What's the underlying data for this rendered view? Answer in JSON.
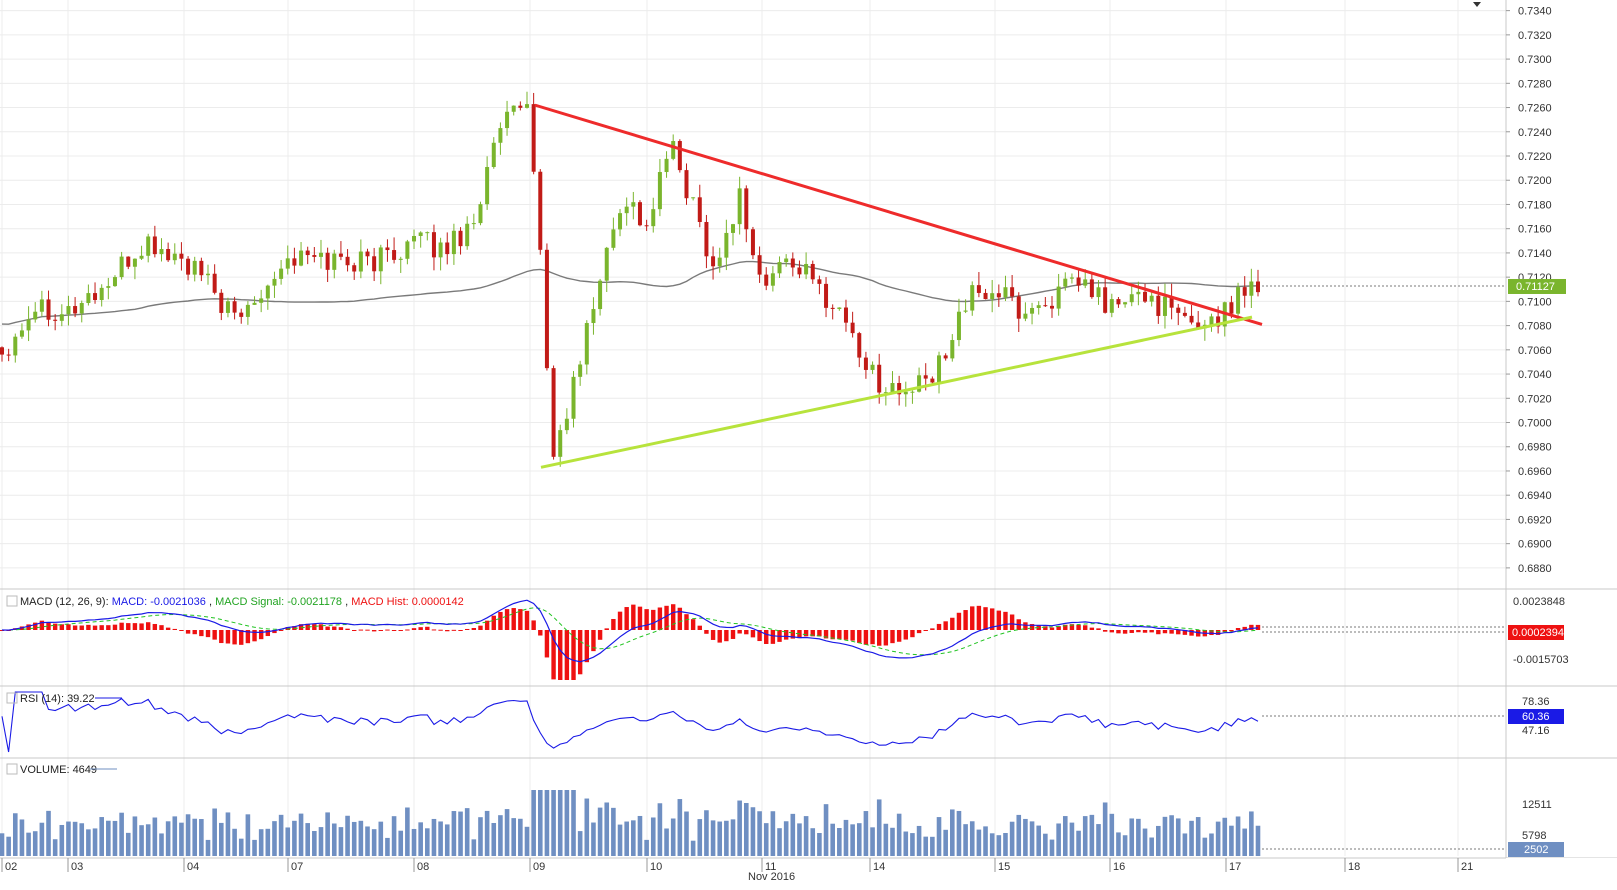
{
  "price_panel": {
    "axis_ticks": [
      "0.7340",
      "0.7320",
      "0.7300",
      "0.7280",
      "0.7260",
      "0.7240",
      "0.7220",
      "0.7200",
      "0.7180",
      "0.7160",
      "0.7140",
      "0.7120",
      "0.7100",
      "0.7080",
      "0.7060",
      "0.7040",
      "0.7020",
      "0.7000",
      "0.6980",
      "0.6960",
      "0.6940",
      "0.6920",
      "0.6900",
      "0.6880"
    ],
    "current_price_label": "0.71127"
  },
  "macd_panel": {
    "label_prefix": "MACD (12, 26, 9): ",
    "macd_label": "MACD: -0.0021036",
    "signal_label": "MACD Signal: -0.0021178",
    "hist_label": "MACD Hist: 0.0000142",
    "axis_top": "0.0023848",
    "axis_bottom": "-0.0015703",
    "current_label": "0.0002394"
  },
  "rsi_panel": {
    "label": "RSI (14): 39.22",
    "axis_top": "78.36",
    "axis_bottom": "47.16",
    "current_label": "60.36"
  },
  "volume_panel": {
    "label": "VOLUME: 4649",
    "axis_top": "12511",
    "axis_bottom": "5798",
    "current_label": "2502"
  },
  "x_axis": {
    "day_labels": [
      "02",
      "03",
      "04",
      "07",
      "08",
      "09",
      "10",
      "11",
      "14",
      "15",
      "16",
      "17",
      "18",
      "21"
    ],
    "month_label": "Nov 2016"
  },
  "colors": {
    "bull_candle": "#7ab52d",
    "bear_candle": "#c11b17",
    "resistance_line": "#ee2b2b",
    "support_line": "#b7e33c",
    "moving_average": "#7a7a7a",
    "macd_line": "#1a1ae6",
    "signal_line": "#22c422",
    "macd_hist": "#ee1111",
    "rsi_line": "#1a1ae6",
    "volume_bar": "#6f8fc2",
    "price_tag": "#7ab52d",
    "macd_tag": "#ee1111",
    "rsi_tag": "#1a1ae6",
    "volume_tag": "#6f8fc2"
  },
  "chart_data": {
    "type": "candlestick",
    "period": "Nov 2016",
    "price_axis": {
      "ylim": [
        0.687,
        0.7343
      ]
    },
    "trendlines": [
      {
        "name": "",
        "points": [
          [
            "Nov 09",
            0.7262
          ],
          [
            "Nov 17",
            0.7081
          ]
        ]
      },
      {
        "name": "",
        "points": [
          [
            "Nov 09",
            0.6963
          ],
          [
            "Nov 17",
            0.7087
          ]
        ]
      }
    ],
    "waypoints": [
      [
        "Nov 02",
        0.7058
      ],
      [
        "Nov 02",
        0.7098
      ],
      [
        "Nov 03",
        0.7092
      ],
      [
        "Nov 03",
        0.7113
      ],
      [
        "Nov 03",
        0.7148
      ],
      [
        "Nov 04",
        0.7132
      ],
      [
        "Nov 04",
        0.7112
      ],
      [
        "Nov 04",
        0.7082
      ],
      [
        "Nov 04",
        0.7113
      ],
      [
        "Nov 07",
        0.7136
      ],
      [
        "Nov 07",
        0.7135
      ],
      [
        "Nov 07",
        0.7133
      ],
      [
        "Nov 08",
        0.715
      ],
      [
        "Nov 08",
        0.7143
      ],
      [
        "Nov 08",
        0.7165
      ],
      [
        "Nov 08",
        0.7243
      ],
      [
        "Nov 09",
        0.7262
      ],
      [
        "Nov 09",
        0.697
      ],
      [
        "Nov 09",
        0.704
      ],
      [
        "Nov 09",
        0.712
      ],
      [
        "Nov 09",
        0.719
      ],
      [
        "Nov 10",
        0.716
      ],
      [
        "Nov 10",
        0.723
      ],
      [
        "Nov 10",
        0.718
      ],
      [
        "Nov 10",
        0.7125
      ],
      [
        "Nov 10",
        0.719
      ],
      [
        "Nov 11",
        0.711
      ],
      [
        "Nov 11",
        0.7138
      ],
      [
        "Nov 11",
        0.7112
      ],
      [
        "Nov 11",
        0.709
      ],
      [
        "Nov 14",
        0.704
      ],
      [
        "Nov 14",
        0.7023
      ],
      [
        "Nov 14",
        0.7035
      ],
      [
        "Nov 14",
        0.71
      ],
      [
        "Nov 15",
        0.711
      ],
      [
        "Nov 15",
        0.709
      ],
      [
        "Nov 15",
        0.7103
      ],
      [
        "Nov 15",
        0.7115
      ],
      [
        "Nov 16",
        0.7095
      ],
      [
        "Nov 16",
        0.7105
      ],
      [
        "Nov 16",
        0.708
      ],
      [
        "Nov 17",
        0.709
      ],
      [
        "Nov 17",
        0.7115
      ]
    ],
    "overlays": [
      "moving average"
    ],
    "indicators": [
      {
        "name": "MACD (12, 26, 9)",
        "macd": -0.0021036,
        "signal": -0.0021178,
        "hist": 1.42e-05,
        "ylim": [
          -0.0015703,
          0.0023848
        ]
      },
      {
        "name": "RSI (14)",
        "value": 39.22,
        "ticks": [
          78.36,
          47.16
        ]
      },
      {
        "name": "VOLUME",
        "value": 4649,
        "ticks": [
          12511,
          5798
        ]
      }
    ]
  }
}
